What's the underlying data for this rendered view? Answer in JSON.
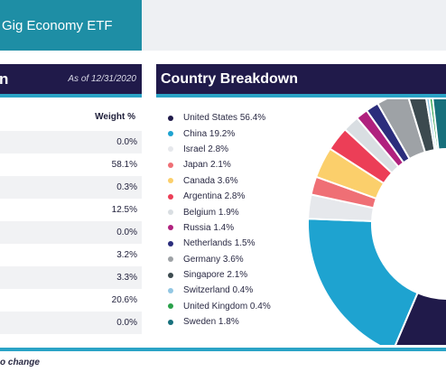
{
  "header": {
    "title": "Gig Economy ETF"
  },
  "left_panel": {
    "title": "n",
    "as_of": "As of 12/31/2020",
    "column_header": "Weight %",
    "rows": [
      "0.0%",
      "58.1%",
      "0.3%",
      "12.5%",
      "0.0%",
      "3.2%",
      "3.3%",
      "20.6%",
      "0.0%"
    ]
  },
  "right_panel": {
    "title": "Country Breakdown"
  },
  "chart_data": {
    "type": "pie",
    "donut": true,
    "categories": [
      "United States",
      "China",
      "Israel",
      "Japan",
      "Canada",
      "Argentina",
      "Belgium",
      "Russia",
      "Netherlands",
      "Germany",
      "Singapore",
      "Switzerland",
      "United Kingdom",
      "Sweden"
    ],
    "labels": [
      "United States 56.4%",
      "China 19.2%",
      "Israel 2.8%",
      "Japan 2.1%",
      "Canada 3.6%",
      "Argentina 2.8%",
      "Belgium 1.9%",
      "Russia 1.4%",
      "Netherlands 1.5%",
      "Germany 3.6%",
      "Singapore 2.1%",
      "Switzerland 0.4%",
      "United Kingdom 0.4%",
      "Sweden 1.8%"
    ],
    "values": [
      56.4,
      19.2,
      2.8,
      2.1,
      3.6,
      2.8,
      1.9,
      1.4,
      1.5,
      3.6,
      2.1,
      0.4,
      0.4,
      1.8
    ],
    "colors": [
      "#201a4a",
      "#1ea3d0",
      "#e6e8ec",
      "#ef6f75",
      "#fbcf6b",
      "#ec3e57",
      "#d9dee2",
      "#b0217e",
      "#2b2d7c",
      "#9ea2a6",
      "#3c4a4f",
      "#93c7e3",
      "#2aa14a",
      "#17707c"
    ],
    "legend_position": "left"
  },
  "footnote": "o change"
}
